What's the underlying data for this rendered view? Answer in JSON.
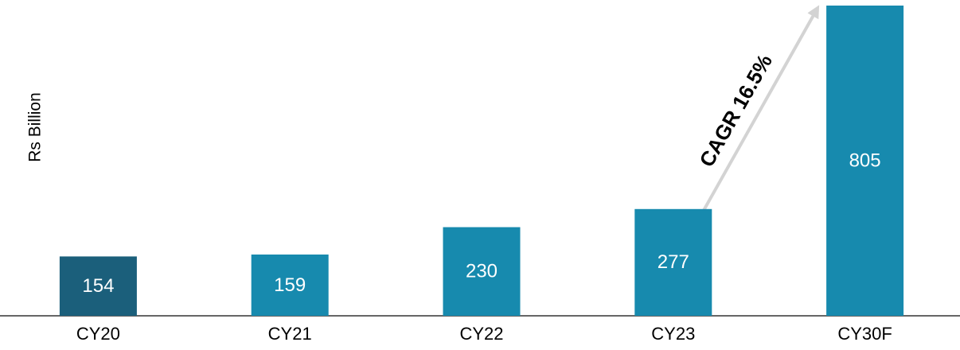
{
  "chart_data": {
    "type": "bar",
    "y_label": "Rs Billion",
    "annotation": "CAGR 16.5%",
    "categories": [
      "CY20",
      "CY21",
      "CY22",
      "CY23",
      "CY30F"
    ],
    "values": [
      154,
      159,
      230,
      277,
      805
    ],
    "colors": [
      "#1b5f7b",
      "#178aae",
      "#178aae",
      "#178aae",
      "#178aae"
    ],
    "ylim": [
      0,
      805
    ]
  }
}
